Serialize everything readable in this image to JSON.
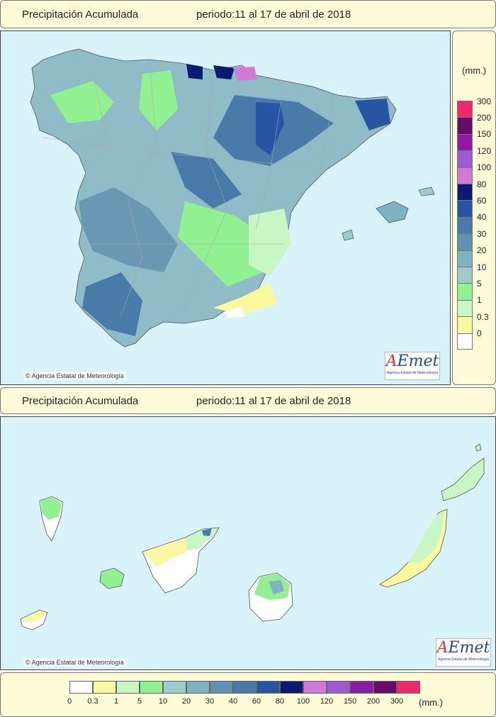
{
  "header_top": {
    "title": "Precipitación Acumulada",
    "period": "periodo:11 al 17 de abril de 2018"
  },
  "header_mid": {
    "title": "Precipitación Acumulada",
    "period": "periodo:11 al 17 de abril de 2018"
  },
  "credit": "Agencia Estatal de Meteorología",
  "logo": {
    "a": "A",
    "rest": "Emet",
    "subtitle": "Agencia Estatal de Meteorología"
  },
  "legend": {
    "units": "(mm.)",
    "bins": [
      {
        "label": "0",
        "color": "#ffffff"
      },
      {
        "label": "0.3",
        "color": "#fbf9a0"
      },
      {
        "label": "1",
        "color": "#c8f6c4"
      },
      {
        "label": "5",
        "color": "#91f191"
      },
      {
        "label": "10",
        "color": "#9ccccc"
      },
      {
        "label": "20",
        "color": "#7eb4c2"
      },
      {
        "label": "30",
        "color": "#5f91b0"
      },
      {
        "label": "40",
        "color": "#4a7aa8"
      },
      {
        "label": "60",
        "color": "#2854a4"
      },
      {
        "label": "80",
        "color": "#0a1c72"
      },
      {
        "label": "100",
        "color": "#d278d8"
      },
      {
        "label": "120",
        "color": "#a05ad0"
      },
      {
        "label": "150",
        "color": "#8c1aa4"
      },
      {
        "label": "200",
        "color": "#6a0a6a"
      },
      {
        "label": "300",
        "color": "#f0286e"
      }
    ]
  },
  "colors": {
    "sea": "#d8f4fa",
    "panel": "#fdfbd8",
    "border": "#7a7a6a"
  }
}
